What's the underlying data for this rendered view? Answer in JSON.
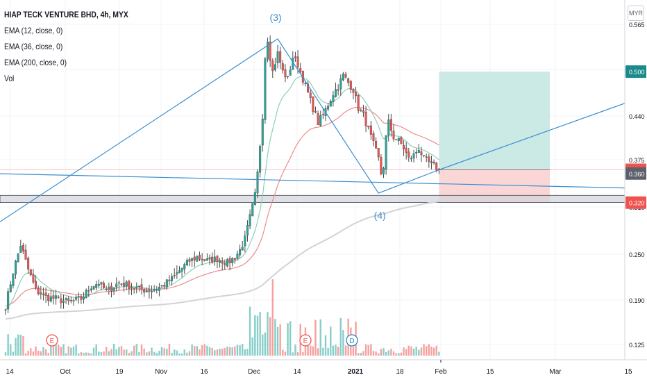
{
  "legend": {
    "title": "HIAP TECK VENTURE BHD, 4h, MYX",
    "indicators": [
      "EMA (12, close, 0)",
      "EMA (36, close, 0)",
      "EMA (200, close, 0)",
      "Vol"
    ]
  },
  "currency_button": "MYR",
  "colors": {
    "up": "#26a69a",
    "down": "#ef5350",
    "ema12": "#8fcfb6",
    "ema36": "#ef8a8a",
    "ema200": "#d3d3d3",
    "drawing": "#3b8ed0",
    "target_zone": "#cbe9e5",
    "stop_zone": "#fbd6d6",
    "support_band": "#d1d4dc"
  },
  "chart_data": {
    "type": "candlestick",
    "title": "HIAP TECK VENTURE BHD, 4h, MYX",
    "currency": "MYR",
    "x_tick_labels": [
      "14",
      "Oct",
      "19",
      "Nov",
      "16",
      "Dec",
      "14",
      "2021",
      "18",
      "Feb",
      "15",
      "Mar",
      "15"
    ],
    "y_tick_labels": [
      "0.565",
      "0.500",
      "0.440",
      "0.375",
      "0.310",
      "0.250",
      "0.190",
      "0.125"
    ],
    "price_labels": [
      {
        "text": "0.500",
        "value": 0.5,
        "color": "#1b8a8a"
      },
      {
        "text": "0.365",
        "value": 0.365,
        "color": "#ef5350"
      },
      {
        "text": "0.360",
        "value": 0.36,
        "color": "#5d606b"
      },
      {
        "text": "0.320",
        "value": 0.32,
        "color": "#ef5350"
      }
    ],
    "wave_labels": [
      "(3)",
      "(4)"
    ],
    "event_markers": [
      "E",
      "E",
      "D"
    ],
    "close_path": [
      {
        "bar": 0,
        "close": 0.178
      },
      {
        "bar": 3,
        "close": 0.225
      },
      {
        "bar": 6,
        "close": 0.262
      },
      {
        "bar": 9,
        "close": 0.228
      },
      {
        "bar": 12,
        "close": 0.2
      },
      {
        "bar": 16,
        "close": 0.19
      },
      {
        "bar": 20,
        "close": 0.188
      },
      {
        "bar": 25,
        "close": 0.183
      },
      {
        "bar": 30,
        "close": 0.188
      },
      {
        "bar": 34,
        "close": 0.205
      },
      {
        "bar": 37,
        "close": 0.21
      },
      {
        "bar": 40,
        "close": 0.198
      },
      {
        "bar": 45,
        "close": 0.21
      },
      {
        "bar": 50,
        "close": 0.205
      },
      {
        "bar": 54,
        "close": 0.2
      },
      {
        "bar": 58,
        "close": 0.2
      },
      {
        "bar": 62,
        "close": 0.205
      },
      {
        "bar": 66,
        "close": 0.215
      },
      {
        "bar": 70,
        "close": 0.23
      },
      {
        "bar": 73,
        "close": 0.24
      },
      {
        "bar": 76,
        "close": 0.245
      },
      {
        "bar": 80,
        "close": 0.24
      },
      {
        "bar": 84,
        "close": 0.243
      },
      {
        "bar": 88,
        "close": 0.237
      },
      {
        "bar": 91,
        "close": 0.245
      },
      {
        "bar": 93,
        "close": 0.255
      },
      {
        "bar": 95,
        "close": 0.27
      },
      {
        "bar": 97,
        "close": 0.3
      },
      {
        "bar": 99,
        "close": 0.33
      },
      {
        "bar": 100,
        "close": 0.36
      },
      {
        "bar": 101,
        "close": 0.4
      },
      {
        "bar": 102,
        "close": 0.44
      },
      {
        "bar": 103,
        "close": 0.52
      },
      {
        "bar": 104,
        "close": 0.545
      },
      {
        "bar": 105,
        "close": 0.52
      },
      {
        "bar": 106,
        "close": 0.5
      },
      {
        "bar": 108,
        "close": 0.525
      },
      {
        "bar": 110,
        "close": 0.5
      },
      {
        "bar": 112,
        "close": 0.49
      },
      {
        "bar": 114,
        "close": 0.52
      },
      {
        "bar": 116,
        "close": 0.51
      },
      {
        "bar": 118,
        "close": 0.49
      },
      {
        "bar": 120,
        "close": 0.47
      },
      {
        "bar": 122,
        "close": 0.45
      },
      {
        "bar": 124,
        "close": 0.43
      },
      {
        "bar": 126,
        "close": 0.44
      },
      {
        "bar": 128,
        "close": 0.455
      },
      {
        "bar": 130,
        "close": 0.47
      },
      {
        "bar": 132,
        "close": 0.48
      },
      {
        "bar": 134,
        "close": 0.495
      },
      {
        "bar": 136,
        "close": 0.485
      },
      {
        "bar": 138,
        "close": 0.475
      },
      {
        "bar": 140,
        "close": 0.45
      },
      {
        "bar": 142,
        "close": 0.44
      },
      {
        "bar": 144,
        "close": 0.42
      },
      {
        "bar": 146,
        "close": 0.4
      },
      {
        "bar": 148,
        "close": 0.38
      },
      {
        "bar": 149,
        "close": 0.36
      },
      {
        "bar": 150,
        "close": 0.37
      },
      {
        "bar": 151,
        "close": 0.41
      },
      {
        "bar": 152,
        "close": 0.43
      },
      {
        "bar": 154,
        "close": 0.41
      },
      {
        "bar": 156,
        "close": 0.405
      },
      {
        "bar": 158,
        "close": 0.395
      },
      {
        "bar": 160,
        "close": 0.38
      },
      {
        "bar": 162,
        "close": 0.385
      },
      {
        "bar": 164,
        "close": 0.395
      },
      {
        "bar": 166,
        "close": 0.38
      },
      {
        "bar": 168,
        "close": 0.375
      },
      {
        "bar": 170,
        "close": 0.37
      },
      {
        "bar": 172,
        "close": 0.365
      }
    ],
    "drawings": {
      "wave": [
        {
          "bar": -6,
          "price": 0.285
        },
        {
          "bar": 108,
          "price": 0.545
        },
        {
          "bar": 148,
          "price": 0.333
        },
        {
          "bar": 172,
          "price": 0.365
        },
        {
          "bar": 247,
          "price": 0.458
        }
      ],
      "trendline": [
        {
          "bar": -6,
          "price": 0.36
        },
        {
          "bar": 247,
          "price": 0.34
        }
      ],
      "long_position": {
        "start_bar": 172,
        "end_bar": 216,
        "entry": 0.365,
        "target": 0.5,
        "stop": 0.32
      },
      "support_band": [
        0.32,
        0.33
      ]
    }
  }
}
